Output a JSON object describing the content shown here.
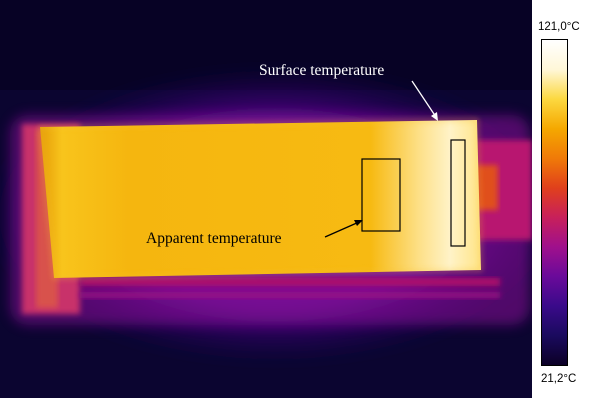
{
  "annotations": {
    "surface": "Surface temperature",
    "apparent": "Apparent temperature"
  },
  "scale": {
    "max_label": "121,0°C",
    "min_label": "21,2°C",
    "max_value": 121.0,
    "min_value": 21.2,
    "unit": "°C"
  },
  "palette": [
    "#0c0026",
    "#1a0a5e",
    "#3a0a8a",
    "#6a0a9a",
    "#a0108c",
    "#c8205a",
    "#e0401c",
    "#f07a08",
    "#f5a800",
    "#fcd840",
    "#fff7d8",
    "#ffffff"
  ]
}
